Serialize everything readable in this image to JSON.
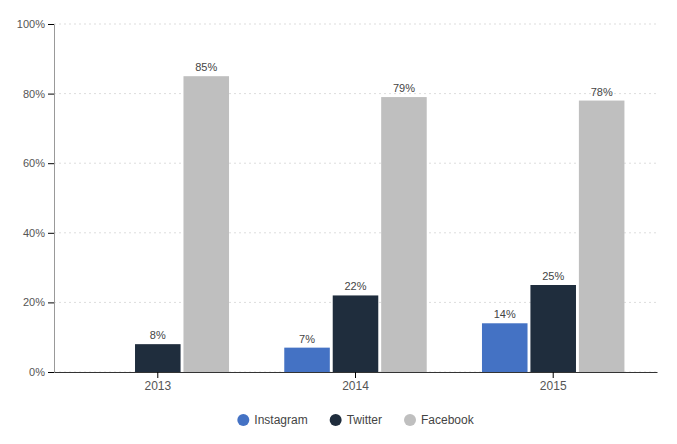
{
  "chart_data": {
    "type": "bar",
    "categories": [
      "2013",
      "2014",
      "2015"
    ],
    "series": [
      {
        "name": "Instagram",
        "color": "#4472C4",
        "values": [
          0,
          7,
          14
        ],
        "value_labels": [
          null,
          "7%",
          "14%"
        ]
      },
      {
        "name": "Twitter",
        "color": "#1F2D3D",
        "values": [
          8,
          22,
          25
        ],
        "value_labels": [
          "8%",
          "22%",
          "25%"
        ]
      },
      {
        "name": "Facebook",
        "color": "#BFBFBF",
        "values": [
          85,
          79,
          78
        ],
        "value_labels": [
          "85%",
          "79%",
          "78%"
        ]
      }
    ],
    "ylim": [
      0,
      100
    ],
    "yticks": [
      {
        "value": 0,
        "label": "0%"
      },
      {
        "value": 20,
        "label": "20%"
      },
      {
        "value": 40,
        "label": "40%"
      },
      {
        "value": 60,
        "label": "60%"
      },
      {
        "value": 80,
        "label": "80%"
      },
      {
        "value": 100,
        "label": "100%"
      }
    ],
    "grid": true,
    "data_labels": true,
    "legend": "bottom"
  }
}
